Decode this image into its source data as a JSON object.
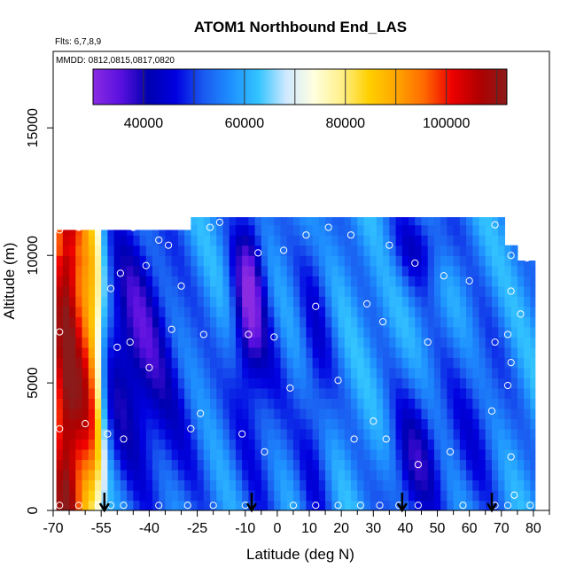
{
  "chart_data": {
    "type": "heatmap",
    "title": "ATOM1 Northbound End_LAS",
    "notes": [
      "Flts: 6,7,8,9",
      "MMDD: 0812,0815,0817,0820"
    ],
    "xlabel": "Latitude (deg N)",
    "ylabel": "Altitude (m)",
    "xlim": [
      -70,
      85
    ],
    "ylim": [
      0,
      18000
    ],
    "xticks": [
      -70,
      -55,
      -40,
      -25,
      -10,
      0,
      10,
      20,
      30,
      40,
      50,
      60,
      70,
      80
    ],
    "xtick_labels": [
      "-70",
      "-55",
      "-40",
      "-25",
      "-10",
      "0",
      "10",
      "20",
      "30",
      "40",
      "50",
      "60",
      "70",
      "80"
    ],
    "xticks_minor": [
      -65,
      -60,
      -50,
      -45,
      -35,
      -30,
      -20,
      -15,
      -5,
      5,
      15,
      25,
      35,
      45,
      55,
      65,
      75,
      85
    ],
    "yticks": [
      0,
      5000,
      10000,
      15000
    ],
    "ytick_labels": [
      "0",
      "5000",
      "10000",
      "15000"
    ],
    "colorbar": {
      "min": 30000,
      "max": 112000,
      "ticks": [
        40000,
        60000,
        80000,
        100000
      ],
      "tick_labels": [
        "40000",
        "60000",
        "80000",
        "100000"
      ],
      "colors": [
        "#8a2be2",
        "#5a10e0",
        "#0000b0",
        "#0000e0",
        "#1a5af0",
        "#1e90ff",
        "#33c4ff",
        "#cfe9ff",
        "#ffffe0",
        "#fff08a",
        "#ffd000",
        "#ffa500",
        "#ff6a00",
        "#ee0000",
        "#b00000",
        "#8b1a1a"
      ]
    },
    "arrows_latitude": [
      -54,
      -8,
      39,
      67
    ],
    "grid": false
  }
}
